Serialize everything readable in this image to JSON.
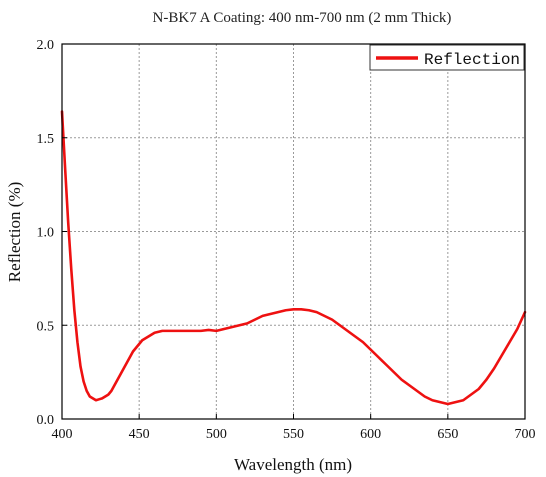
{
  "chart_data": {
    "type": "line",
    "title": "N-BK7 A Coating: 400 nm-700 nm (2 mm Thick)",
    "xlabel": "Wavelength (nm)",
    "ylabel": "Reflection (%)",
    "xlim": [
      400,
      700
    ],
    "ylim": [
      0.0,
      2.0
    ],
    "x_ticks": [
      400,
      450,
      500,
      550,
      600,
      650,
      700
    ],
    "x_tick_labels": [
      "400",
      "450",
      "500",
      "550",
      "600",
      "650",
      "700"
    ],
    "y_ticks": [
      0.0,
      0.5,
      1.0,
      1.5,
      2.0
    ],
    "y_tick_labels": [
      "0.0",
      "0.5",
      "1.0",
      "1.5",
      "2.0"
    ],
    "grid": true,
    "legend": {
      "placement": "top-right",
      "entries": [
        "Reflection"
      ]
    },
    "colors": {
      "series": "#ee1111",
      "grid": "#9a9a9a",
      "axis": "#000000"
    },
    "series": [
      {
        "name": "Reflection",
        "x": [
          400,
          402,
          404,
          406,
          408,
          410,
          412,
          414,
          416,
          418,
          420,
          422,
          424,
          426,
          428,
          430,
          432,
          434,
          436,
          438,
          440,
          442,
          444,
          446,
          448,
          450,
          452,
          454,
          456,
          458,
          460,
          465,
          470,
          475,
          480,
          485,
          490,
          495,
          500,
          505,
          510,
          515,
          520,
          525,
          530,
          535,
          540,
          545,
          550,
          555,
          560,
          565,
          570,
          575,
          580,
          585,
          590,
          595,
          600,
          605,
          610,
          615,
          620,
          625,
          630,
          635,
          640,
          645,
          650,
          655,
          660,
          665,
          670,
          675,
          680,
          685,
          690,
          695,
          700
        ],
        "y": [
          1.64,
          1.34,
          1.05,
          0.8,
          0.58,
          0.41,
          0.28,
          0.2,
          0.15,
          0.12,
          0.11,
          0.1,
          0.105,
          0.11,
          0.12,
          0.13,
          0.15,
          0.18,
          0.21,
          0.24,
          0.27,
          0.3,
          0.33,
          0.36,
          0.38,
          0.4,
          0.42,
          0.43,
          0.44,
          0.45,
          0.46,
          0.47,
          0.47,
          0.47,
          0.47,
          0.47,
          0.47,
          0.475,
          0.47,
          0.48,
          0.49,
          0.5,
          0.51,
          0.53,
          0.55,
          0.56,
          0.57,
          0.58,
          0.585,
          0.585,
          0.58,
          0.57,
          0.55,
          0.53,
          0.5,
          0.47,
          0.44,
          0.41,
          0.37,
          0.33,
          0.29,
          0.25,
          0.21,
          0.18,
          0.15,
          0.12,
          0.1,
          0.09,
          0.08,
          0.09,
          0.1,
          0.13,
          0.16,
          0.21,
          0.27,
          0.34,
          0.41,
          0.48,
          0.57
        ]
      }
    ]
  }
}
